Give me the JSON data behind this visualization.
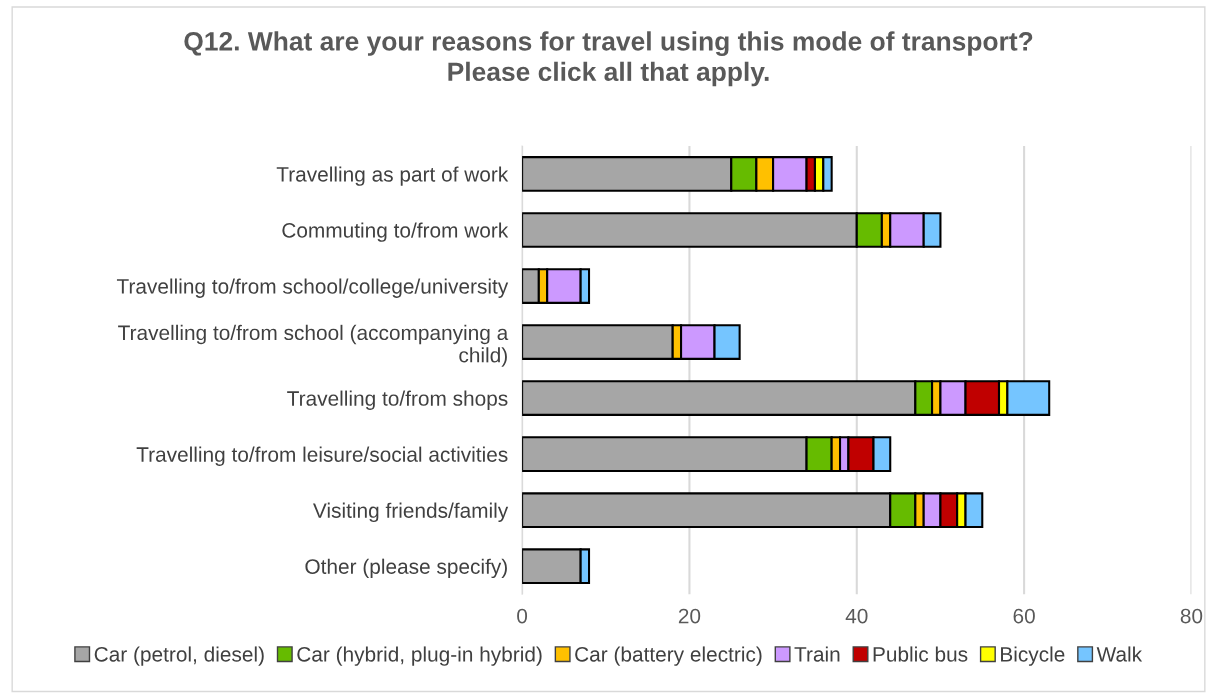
{
  "chart_data": {
    "type": "bar",
    "orientation": "horizontal",
    "stacked": true,
    "title": "Q12. What are your reasons for travel using this mode of transport?\nPlease click all that apply.",
    "categories": [
      "Travelling as part of work",
      "Commuting to/from work",
      "Travelling to/from school/college/university",
      "Travelling to/from school (accompanying a\nchild)",
      "Travelling to/from shops",
      "Travelling to/from leisure/social activities",
      "Visiting friends/family",
      "Other (please specify)"
    ],
    "series": [
      {
        "name": "Car (petrol, diesel)",
        "color": "#a6a6a6",
        "values": [
          25,
          40,
          2,
          18,
          47,
          34,
          44,
          7
        ]
      },
      {
        "name": "Car (hybrid, plug-in hybrid)",
        "color": "#66bb00",
        "values": [
          3,
          3,
          null,
          null,
          2,
          3,
          3,
          null
        ]
      },
      {
        "name": "Car (battery electric)",
        "color": "#ffc000",
        "values": [
          2,
          1,
          1,
          1,
          1,
          1,
          1,
          null
        ]
      },
      {
        "name": "Train",
        "color": "#cc99ff",
        "values": [
          4,
          4,
          4,
          4,
          3,
          1,
          2,
          null
        ]
      },
      {
        "name": "Public bus",
        "color": "#c00000",
        "values": [
          1,
          null,
          null,
          null,
          4,
          3,
          2,
          null
        ]
      },
      {
        "name": "Bicycle",
        "color": "#ffff00",
        "values": [
          1,
          null,
          null,
          null,
          1,
          null,
          1,
          null
        ]
      },
      {
        "name": "Walk",
        "color": "#75c5ff",
        "values": [
          1,
          2,
          1,
          3,
          5,
          2,
          2,
          1
        ]
      }
    ],
    "xlim": [
      0,
      80
    ],
    "xticks": [
      0,
      20,
      40,
      60,
      80
    ],
    "grid": "x",
    "legend": "bottom"
  }
}
